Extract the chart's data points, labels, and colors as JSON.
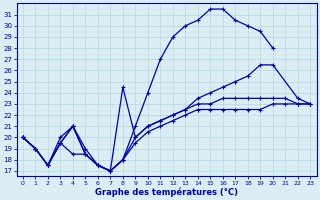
{
  "xlabel": "Graphe des températures (°C)",
  "xlim": [
    -0.5,
    23.5
  ],
  "ylim": [
    16.5,
    32.0
  ],
  "yticks": [
    17,
    18,
    19,
    20,
    21,
    22,
    23,
    24,
    25,
    26,
    27,
    28,
    29,
    30,
    31
  ],
  "xticks": [
    0,
    1,
    2,
    3,
    4,
    5,
    6,
    7,
    8,
    9,
    10,
    11,
    12,
    13,
    14,
    15,
    16,
    17,
    18,
    19,
    20,
    21,
    22,
    23
  ],
  "background_color": "#daeef3",
  "grid_color": "#b0d8e3",
  "line_color": "#0000bb",
  "line1_x": [
    0,
    1,
    2,
    3,
    4,
    5,
    6,
    7,
    8,
    9,
    10,
    11,
    12,
    13,
    14,
    15,
    16,
    17,
    18,
    19,
    20
  ],
  "line1_y": [
    20.0,
    19.0,
    17.5,
    20.0,
    21.0,
    19.0,
    17.5,
    17.0,
    18.0,
    21.0,
    24.0,
    27.0,
    29.0,
    30.0,
    30.5,
    31.5,
    31.5,
    30.5,
    30.0,
    29.5,
    28.0
  ],
  "line2_x": [
    0,
    1,
    2,
    3,
    4,
    5,
    6,
    7,
    8,
    9,
    10,
    11,
    12,
    13,
    14,
    15,
    16,
    17,
    18,
    19,
    20,
    22,
    23
  ],
  "line2_y": [
    20.0,
    19.0,
    17.5,
    19.5,
    21.0,
    18.5,
    17.5,
    17.0,
    24.5,
    20.0,
    21.0,
    21.5,
    22.0,
    22.5,
    23.5,
    24.0,
    24.5,
    25.0,
    25.5,
    26.5,
    26.5,
    23.5,
    23.0
  ],
  "line3_x": [
    0,
    1,
    2,
    3,
    4,
    5,
    6,
    7,
    8,
    9,
    10,
    11,
    12,
    13,
    14,
    15,
    16,
    17,
    18,
    19,
    20,
    21,
    22,
    23
  ],
  "line3_y": [
    20.0,
    19.0,
    17.5,
    19.5,
    18.5,
    18.5,
    17.5,
    17.0,
    18.0,
    19.5,
    20.5,
    21.0,
    21.5,
    22.0,
    22.5,
    22.5,
    22.5,
    22.5,
    22.5,
    22.5,
    23.0,
    23.0,
    23.0,
    23.0
  ],
  "line4_x": [
    0,
    1,
    2,
    3,
    4,
    5,
    6,
    7,
    8,
    9,
    10,
    11,
    12,
    13,
    14,
    15,
    16,
    17,
    18,
    19,
    20,
    21,
    22,
    23
  ],
  "line4_y": [
    20.0,
    19.0,
    17.5,
    19.5,
    21.0,
    18.5,
    17.5,
    17.0,
    18.0,
    20.0,
    21.0,
    21.5,
    22.0,
    22.5,
    23.0,
    23.0,
    23.5,
    23.5,
    23.5,
    23.5,
    23.5,
    23.5,
    23.0,
    23.0
  ]
}
